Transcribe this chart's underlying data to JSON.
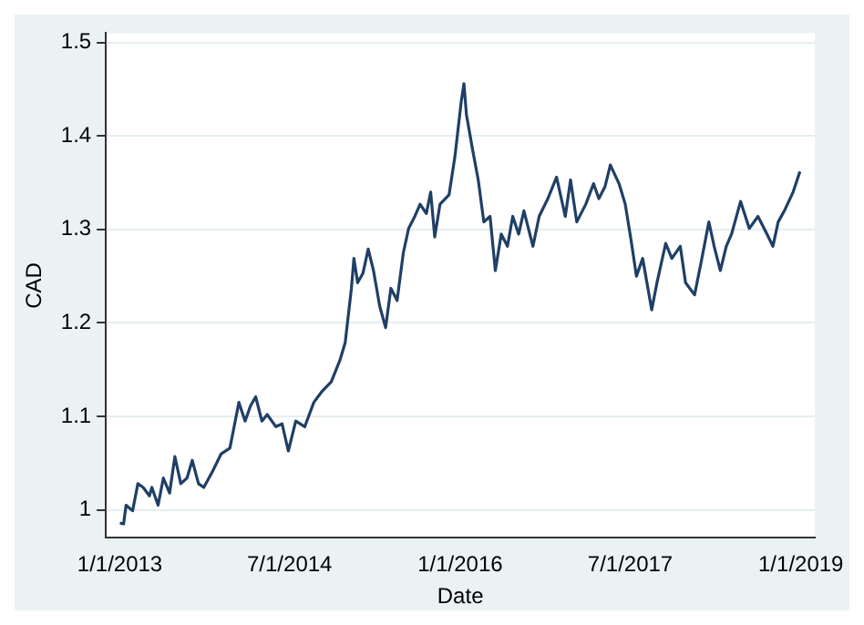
{
  "chart_data": {
    "type": "line",
    "xlabel": "Date",
    "ylabel": "CAD",
    "grid": "y",
    "marker": "none",
    "line_style": "solid",
    "xlim": [
      "2012-11-17",
      "2019-02-15"
    ],
    "ylim": [
      0.97,
      1.51
    ],
    "xticks": [
      {
        "value": "2013-01-01",
        "label": "1/1/2013"
      },
      {
        "value": "2014-07-01",
        "label": "7/1/2014"
      },
      {
        "value": "2016-01-01",
        "label": "1/1/2016"
      },
      {
        "value": "2017-07-01",
        "label": "7/1/2017"
      },
      {
        "value": "2019-01-01",
        "label": "1/1/2019"
      }
    ],
    "yticks": [
      1,
      1.1,
      1.2,
      1.3,
      1.4,
      1.5
    ],
    "series": [
      {
        "color": "#1f3f66",
        "x": [
          "2013-01-01",
          "2013-01-13",
          "2013-01-21",
          "2013-02-11",
          "2013-02-28",
          "2013-03-17",
          "2013-04-06",
          "2013-04-14",
          "2013-05-04",
          "2013-05-21",
          "2013-06-10",
          "2013-06-27",
          "2013-07-16",
          "2013-08-05",
          "2013-08-22",
          "2013-09-11",
          "2013-09-28",
          "2013-10-26",
          "2013-11-23",
          "2013-12-21",
          "2014-01-19",
          "2014-02-08",
          "2014-02-25",
          "2014-03-14",
          "2014-04-03",
          "2014-04-20",
          "2014-05-18",
          "2014-06-07",
          "2014-06-27",
          "2014-07-21",
          "2014-08-19",
          "2014-09-17",
          "2014-10-14",
          "2014-11-12",
          "2014-12-10",
          "2014-12-27",
          "2015-01-16",
          "2015-01-24",
          "2015-02-05",
          "2015-02-22",
          "2015-03-11",
          "2015-03-28",
          "2015-04-17",
          "2015-05-06",
          "2015-05-23",
          "2015-06-12",
          "2015-07-02",
          "2015-07-19",
          "2015-08-08",
          "2015-08-25",
          "2015-09-14",
          "2015-09-28",
          "2015-10-11",
          "2015-10-28",
          "2015-11-26",
          "2015-12-15",
          "2016-01-04",
          "2016-01-13",
          "2016-01-21",
          "2016-02-10",
          "2016-02-28",
          "2016-03-17",
          "2016-04-06",
          "2016-04-23",
          "2016-05-12",
          "2016-06-01",
          "2016-06-18",
          "2016-07-07",
          "2016-07-24",
          "2016-08-22",
          "2016-09-11",
          "2016-10-09",
          "2016-11-06",
          "2016-12-04",
          "2016-12-21",
          "2017-01-10",
          "2017-02-08",
          "2017-03-05",
          "2017-03-22",
          "2017-04-11",
          "2017-04-28",
          "2017-05-26",
          "2017-06-15",
          "2017-07-04",
          "2017-07-21",
          "2017-08-10",
          "2017-09-08",
          "2017-09-25",
          "2017-10-23",
          "2017-11-12",
          "2017-12-09",
          "2017-12-26",
          "2018-01-24",
          "2018-02-13",
          "2018-03-11",
          "2018-03-28",
          "2018-04-17",
          "2018-05-06",
          "2018-05-23",
          "2018-06-21",
          "2018-07-19",
          "2018-08-16",
          "2018-09-14",
          "2018-10-03",
          "2018-10-20",
          "2018-11-09",
          "2018-12-07",
          "2018-12-29"
        ],
        "values": [
          0.986,
          0.985,
          1.005,
          0.999,
          1.028,
          1.024,
          1.015,
          1.024,
          1.005,
          1.034,
          1.018,
          1.057,
          1.028,
          1.034,
          1.053,
          1.028,
          1.024,
          1.041,
          1.06,
          1.066,
          1.115,
          1.095,
          1.111,
          1.121,
          1.095,
          1.102,
          1.089,
          1.092,
          1.063,
          1.095,
          1.089,
          1.115,
          1.127,
          1.137,
          1.16,
          1.179,
          1.237,
          1.269,
          1.243,
          1.253,
          1.279,
          1.256,
          1.218,
          1.195,
          1.237,
          1.224,
          1.275,
          1.301,
          1.314,
          1.327,
          1.317,
          1.34,
          1.292,
          1.327,
          1.337,
          1.378,
          1.436,
          1.456,
          1.423,
          1.385,
          1.353,
          1.308,
          1.314,
          1.256,
          1.295,
          1.282,
          1.314,
          1.295,
          1.32,
          1.282,
          1.314,
          1.333,
          1.356,
          1.314,
          1.353,
          1.308,
          1.327,
          1.349,
          1.333,
          1.346,
          1.369,
          1.349,
          1.327,
          1.288,
          1.25,
          1.269,
          1.214,
          1.243,
          1.285,
          1.269,
          1.282,
          1.243,
          1.23,
          1.263,
          1.308,
          1.282,
          1.256,
          1.282,
          1.295,
          1.33,
          1.301,
          1.314,
          1.295,
          1.282,
          1.308,
          1.32,
          1.34,
          1.362
        ]
      }
    ]
  }
}
